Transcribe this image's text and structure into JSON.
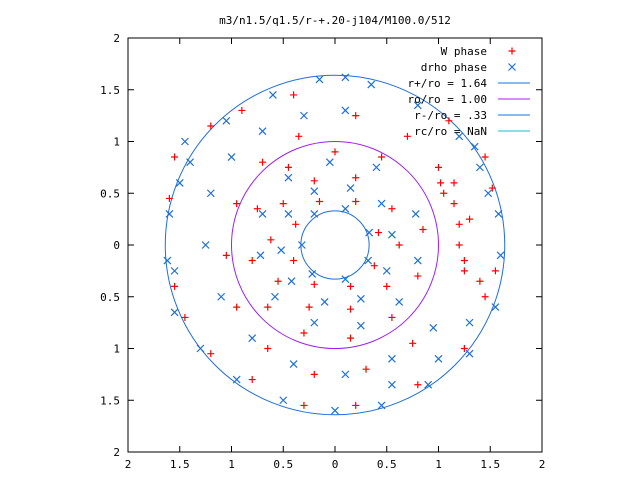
{
  "chart_data": {
    "type": "scatter",
    "title": "m3/n1.5/q1.5/r-+.20-j104/M100.0/512",
    "xlabel": "",
    "ylabel": "",
    "xlim": [
      -2,
      2
    ],
    "ylim": [
      -2,
      2
    ],
    "x_ticks": [
      -2,
      -1.5,
      -1,
      -0.5,
      0,
      0.5,
      1,
      1.5,
      2
    ],
    "y_ticks": [
      -2,
      -1.5,
      -1,
      -0.5,
      0,
      0.5,
      1,
      1.5,
      2
    ],
    "x_tick_labels": [
      "2",
      "1.5",
      "1",
      "0.5",
      "0",
      "0.5",
      "1",
      "1.5",
      "2"
    ],
    "y_tick_labels": [
      "2",
      "1.5",
      "1",
      "0.5",
      "0",
      "0.5",
      "1",
      "1.5",
      "2"
    ],
    "grid": false,
    "legend_position": "top-right",
    "series": [
      {
        "name": "W phase",
        "marker": "plus",
        "color": "#ff0000",
        "points": [
          [
            0.2,
            1.25
          ],
          [
            -0.35,
            1.05
          ],
          [
            -0.7,
            0.8
          ],
          [
            -0.95,
            0.4
          ],
          [
            -1.05,
            -0.1
          ],
          [
            -0.95,
            -0.6
          ],
          [
            -0.65,
            -1.0
          ],
          [
            -0.2,
            -1.25
          ],
          [
            0.3,
            -1.2
          ],
          [
            0.75,
            -0.95
          ],
          [
            1.0,
            0.75
          ],
          [
            1.15,
            0.6
          ],
          [
            1.3,
            0.25
          ],
          [
            1.25,
            -0.25
          ],
          [
            0.7,
            1.05
          ],
          [
            0.45,
            0.85
          ],
          [
            0.0,
            0.9
          ],
          [
            -0.45,
            0.75
          ],
          [
            -0.75,
            0.35
          ],
          [
            -0.8,
            -0.15
          ],
          [
            -0.65,
            -0.6
          ],
          [
            -0.3,
            -0.85
          ],
          [
            0.15,
            -0.9
          ],
          [
            0.55,
            -0.7
          ],
          [
            0.8,
            -0.3
          ],
          [
            0.85,
            0.15
          ],
          [
            0.2,
            0.65
          ],
          [
            -0.2,
            0.62
          ],
          [
            -0.5,
            0.4
          ],
          [
            -0.62,
            0.05
          ],
          [
            -0.55,
            -0.35
          ],
          [
            -0.25,
            -0.6
          ],
          [
            0.15,
            -0.62
          ],
          [
            0.5,
            -0.4
          ],
          [
            0.62,
            0.0
          ],
          [
            0.55,
            0.35
          ],
          [
            0.2,
            0.42
          ],
          [
            -0.15,
            0.42
          ],
          [
            -0.38,
            0.2
          ],
          [
            -0.4,
            -0.15
          ],
          [
            -0.2,
            -0.38
          ],
          [
            0.15,
            -0.4
          ],
          [
            0.38,
            -0.2
          ],
          [
            0.42,
            0.12
          ],
          [
            -1.2,
            1.15
          ],
          [
            -1.55,
            0.85
          ],
          [
            -1.6,
            0.45
          ],
          [
            -1.55,
            -0.4
          ],
          [
            -1.45,
            -0.7
          ],
          [
            -1.2,
            -1.05
          ],
          [
            -0.8,
            -1.3
          ],
          [
            -0.3,
            -1.55
          ],
          [
            0.2,
            -1.55
          ],
          [
            0.8,
            -1.35
          ],
          [
            1.25,
            -1.0
          ],
          [
            1.45,
            -0.5
          ],
          [
            1.52,
            0.55
          ],
          [
            1.45,
            0.85
          ],
          [
            1.1,
            1.2
          ],
          [
            -0.4,
            1.45
          ],
          [
            -0.9,
            1.3
          ],
          [
            1.02,
            0.6
          ],
          [
            1.05,
            0.5
          ],
          [
            1.15,
            0.4
          ],
          [
            1.2,
            0.2
          ],
          [
            1.2,
            0.0
          ],
          [
            1.25,
            -0.15
          ],
          [
            1.4,
            -0.35
          ],
          [
            1.55,
            -0.25
          ]
        ]
      },
      {
        "name": "drho phase",
        "marker": "cross",
        "color": "#1e6fd9",
        "points": [
          [
            0.1,
            1.3
          ],
          [
            -0.3,
            1.25
          ],
          [
            -0.7,
            1.1
          ],
          [
            -1.0,
            0.85
          ],
          [
            -1.2,
            0.5
          ],
          [
            -1.25,
            0.0
          ],
          [
            -1.1,
            -0.5
          ],
          [
            -0.8,
            -0.9
          ],
          [
            -0.4,
            -1.15
          ],
          [
            0.1,
            -1.25
          ],
          [
            0.55,
            -1.1
          ],
          [
            0.95,
            -0.8
          ],
          [
            0.55,
            -1.35
          ],
          [
            1.0,
            -1.1
          ],
          [
            1.3,
            -0.75
          ],
          [
            0.4,
            0.75
          ],
          [
            -0.05,
            0.8
          ],
          [
            -0.45,
            0.65
          ],
          [
            -0.7,
            0.3
          ],
          [
            -0.72,
            -0.1
          ],
          [
            -0.58,
            -0.5
          ],
          [
            -0.2,
            -0.75
          ],
          [
            0.25,
            -0.78
          ],
          [
            0.62,
            -0.55
          ],
          [
            0.8,
            -0.15
          ],
          [
            0.78,
            0.3
          ],
          [
            0.15,
            0.55
          ],
          [
            -0.2,
            0.52
          ],
          [
            -0.45,
            0.3
          ],
          [
            -0.52,
            -0.05
          ],
          [
            -0.42,
            -0.35
          ],
          [
            -0.1,
            -0.55
          ],
          [
            0.25,
            -0.52
          ],
          [
            0.5,
            -0.25
          ],
          [
            0.55,
            0.1
          ],
          [
            0.45,
            0.4
          ],
          [
            0.1,
            0.35
          ],
          [
            -0.2,
            0.3
          ],
          [
            -0.32,
            0.0
          ],
          [
            -0.22,
            -0.28
          ],
          [
            0.1,
            -0.33
          ],
          [
            0.32,
            -0.15
          ],
          [
            0.33,
            0.12
          ],
          [
            -0.15,
            1.6
          ],
          [
            0.1,
            1.62
          ],
          [
            -0.6,
            1.45
          ],
          [
            -1.05,
            1.2
          ],
          [
            -1.4,
            0.8
          ],
          [
            -1.6,
            0.3
          ],
          [
            -1.62,
            -0.15
          ],
          [
            -1.55,
            -0.65
          ],
          [
            -1.3,
            -1.0
          ],
          [
            -0.95,
            -1.3
          ],
          [
            -0.5,
            -1.5
          ],
          [
            0.0,
            -1.6
          ],
          [
            0.45,
            -1.55
          ],
          [
            0.9,
            -1.35
          ],
          [
            1.3,
            -1.05
          ],
          [
            1.55,
            -0.6
          ],
          [
            1.6,
            -0.1
          ],
          [
            1.58,
            0.3
          ],
          [
            1.4,
            0.75
          ],
          [
            1.2,
            1.05
          ],
          [
            0.8,
            1.35
          ],
          [
            0.35,
            1.55
          ],
          [
            -1.45,
            1.0
          ],
          [
            -1.5,
            0.6
          ],
          [
            -1.55,
            -0.25
          ],
          [
            1.48,
            0.5
          ],
          [
            1.35,
            0.95
          ]
        ]
      }
    ],
    "circles": [
      {
        "name": "r+/ro = 1.64",
        "r": 1.64,
        "color": "#1e6fd9"
      },
      {
        "name": "ro/ro = 1.00",
        "r": 1.0,
        "color": "#a020f0"
      },
      {
        "name": "r-/ro = .33",
        "r": 0.33,
        "color": "#1e6fd9"
      },
      {
        "name": "rc/ro = NaN",
        "r": null,
        "color": "#22b8cf"
      }
    ]
  }
}
